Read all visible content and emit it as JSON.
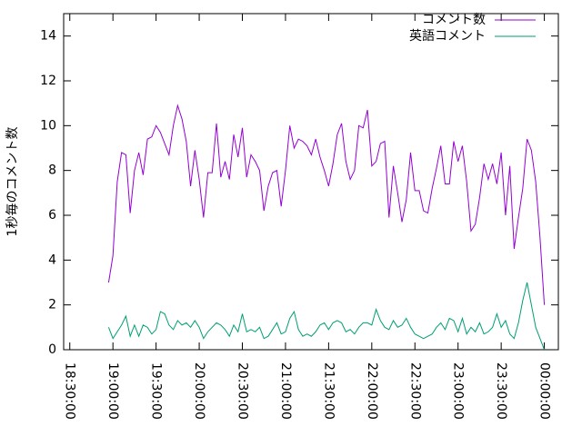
{
  "chart_data": {
    "type": "line",
    "ylabel": "1秒毎のコメント数",
    "x": [
      "18:57:00",
      "19:00:00",
      "19:03:00",
      "19:06:00",
      "19:09:00",
      "19:12:00",
      "19:15:00",
      "19:18:00",
      "19:21:00",
      "19:24:00",
      "19:27:00",
      "19:30:00",
      "19:33:00",
      "19:36:00",
      "19:39:00",
      "19:42:00",
      "19:45:00",
      "19:48:00",
      "19:51:00",
      "19:54:00",
      "19:57:00",
      "20:00:00",
      "20:03:00",
      "20:06:00",
      "20:09:00",
      "20:12:00",
      "20:15:00",
      "20:18:00",
      "20:21:00",
      "20:24:00",
      "20:27:00",
      "20:30:00",
      "20:33:00",
      "20:36:00",
      "20:39:00",
      "20:42:00",
      "20:45:00",
      "20:48:00",
      "20:51:00",
      "20:54:00",
      "20:57:00",
      "21:00:00",
      "21:03:00",
      "21:06:00",
      "21:09:00",
      "21:12:00",
      "21:15:00",
      "21:18:00",
      "21:21:00",
      "21:24:00",
      "21:27:00",
      "21:30:00",
      "21:33:00",
      "21:36:00",
      "21:39:00",
      "21:42:00",
      "21:45:00",
      "21:48:00",
      "21:51:00",
      "21:54:00",
      "21:57:00",
      "22:00:00",
      "22:03:00",
      "22:06:00",
      "22:09:00",
      "22:12:00",
      "22:15:00",
      "22:18:00",
      "22:21:00",
      "22:24:00",
      "22:27:00",
      "22:30:00",
      "22:33:00",
      "22:36:00",
      "22:39:00",
      "22:42:00",
      "22:45:00",
      "22:48:00",
      "22:51:00",
      "22:54:00",
      "22:57:00",
      "23:00:00",
      "23:03:00",
      "23:06:00",
      "23:09:00",
      "23:12:00",
      "23:15:00",
      "23:18:00",
      "23:21:00",
      "23:24:00",
      "23:27:00",
      "23:30:00",
      "23:33:00",
      "23:36:00",
      "23:39:00",
      "23:42:00",
      "23:45:00",
      "23:48:00",
      "23:51:00",
      "23:54:00",
      "23:57:00",
      "00:00:00"
    ],
    "series": [
      {
        "name": "コメント数",
        "color": "#9400d3",
        "values": [
          3.0,
          4.2,
          7.5,
          8.8,
          8.7,
          6.1,
          8.0,
          8.8,
          7.8,
          9.4,
          9.5,
          10.0,
          9.7,
          9.2,
          8.7,
          10.0,
          10.9,
          10.3,
          9.3,
          7.3,
          8.9,
          7.6,
          5.9,
          7.9,
          7.9,
          10.1,
          7.7,
          8.4,
          7.6,
          9.6,
          8.6,
          9.9,
          7.7,
          8.7,
          8.4,
          8.0,
          6.2,
          7.3,
          7.9,
          8.0,
          6.4,
          8.0,
          10.0,
          9.0,
          9.4,
          9.3,
          9.1,
          8.7,
          9.4,
          8.6,
          8.0,
          7.3,
          8.3,
          9.6,
          10.1,
          8.4,
          7.6,
          8.0,
          10.0,
          9.9,
          10.7,
          8.2,
          8.4,
          9.2,
          9.3,
          5.9,
          8.2,
          7.0,
          5.7,
          6.7,
          8.8,
          7.1,
          7.1,
          6.2,
          6.1,
          7.2,
          8.1,
          9.1,
          7.4,
          7.4,
          9.3,
          8.4,
          9.1,
          7.5,
          5.3,
          5.6,
          6.8,
          8.3,
          7.6,
          8.3,
          7.4,
          8.8,
          6.0,
          8.2,
          4.5,
          5.9,
          7.2,
          9.4,
          8.9,
          7.5,
          5.0,
          2.0
        ]
      },
      {
        "name": "英語コメント",
        "color": "#009e73",
        "values": [
          1.0,
          0.5,
          0.8,
          1.1,
          1.5,
          0.6,
          1.1,
          0.6,
          1.1,
          1.0,
          0.7,
          0.9,
          1.7,
          1.6,
          1.1,
          0.9,
          1.3,
          1.1,
          1.2,
          1.0,
          1.3,
          1.0,
          0.5,
          0.8,
          1.0,
          1.2,
          1.1,
          0.9,
          0.6,
          1.1,
          0.8,
          1.6,
          0.8,
          0.9,
          0.8,
          1.0,
          0.5,
          0.6,
          0.9,
          1.2,
          0.7,
          0.8,
          1.4,
          1.7,
          0.9,
          0.6,
          0.7,
          0.6,
          0.8,
          1.1,
          1.2,
          0.9,
          1.2,
          1.3,
          1.2,
          0.8,
          0.9,
          0.7,
          1.0,
          1.2,
          1.2,
          1.1,
          1.8,
          1.3,
          1.0,
          0.9,
          1.3,
          1.0,
          1.1,
          1.4,
          1.0,
          0.7,
          0.6,
          0.5,
          0.6,
          0.7,
          1.0,
          1.2,
          0.9,
          1.4,
          1.3,
          0.8,
          1.4,
          0.7,
          1.0,
          0.8,
          1.2,
          0.7,
          0.8,
          1.0,
          1.6,
          1.0,
          1.3,
          0.7,
          0.5,
          1.2,
          2.2,
          3.0,
          2.0,
          1.0,
          0.5,
          0.0
        ]
      }
    ],
    "xlim": [
      "18:25:44",
      "00:09:45"
    ],
    "xticks": [
      "18:30:00",
      "19:00:00",
      "19:30:00",
      "20:00:00",
      "20:30:00",
      "21:00:00",
      "21:30:00",
      "22:00:00",
      "22:30:00",
      "23:00:00",
      "23:30:00",
      "00:00:00"
    ],
    "ylim": [
      0,
      15
    ],
    "yticks": [
      0,
      2,
      4,
      6,
      8,
      10,
      12,
      14
    ],
    "legend": "top-right"
  }
}
